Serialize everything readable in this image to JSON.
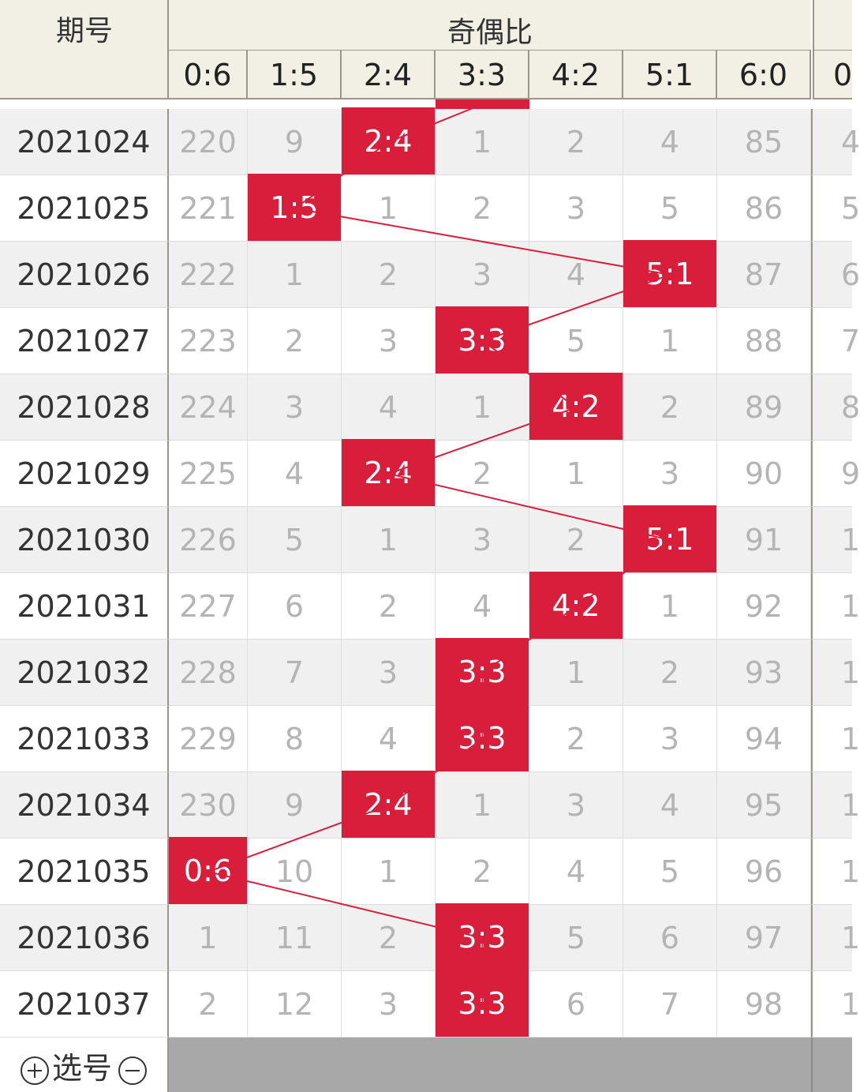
{
  "header": {
    "period_label": "期号",
    "group_label": "奇偶比",
    "columns": [
      "0:6",
      "1:5",
      "2:4",
      "3:3",
      "4:2",
      "5:1",
      "6:0"
    ],
    "next_col_partial": "0"
  },
  "rows": [
    {
      "period": "2021024",
      "values": [
        "220",
        "9",
        "2:4",
        "1",
        "2",
        "4",
        "85"
      ],
      "hit": 2,
      "next": "4"
    },
    {
      "period": "2021025",
      "values": [
        "221",
        "1:5",
        "1",
        "2",
        "3",
        "5",
        "86"
      ],
      "hit": 1,
      "next": "5"
    },
    {
      "period": "2021026",
      "values": [
        "222",
        "1",
        "2",
        "3",
        "4",
        "5:1",
        "87"
      ],
      "hit": 5,
      "next": "6"
    },
    {
      "period": "2021027",
      "values": [
        "223",
        "2",
        "3",
        "3:3",
        "5",
        "1",
        "88"
      ],
      "hit": 3,
      "next": "7"
    },
    {
      "period": "2021028",
      "values": [
        "224",
        "3",
        "4",
        "1",
        "4:2",
        "2",
        "89"
      ],
      "hit": 4,
      "next": "8"
    },
    {
      "period": "2021029",
      "values": [
        "225",
        "4",
        "2:4",
        "2",
        "1",
        "3",
        "90"
      ],
      "hit": 2,
      "next": "9"
    },
    {
      "period": "2021030",
      "values": [
        "226",
        "5",
        "1",
        "3",
        "2",
        "5:1",
        "91"
      ],
      "hit": 5,
      "next": "1"
    },
    {
      "period": "2021031",
      "values": [
        "227",
        "6",
        "2",
        "4",
        "4:2",
        "1",
        "92"
      ],
      "hit": 4,
      "next": "1"
    },
    {
      "period": "2021032",
      "values": [
        "228",
        "7",
        "3",
        "3:3",
        "1",
        "2",
        "93"
      ],
      "hit": 3,
      "next": "1"
    },
    {
      "period": "2021033",
      "values": [
        "229",
        "8",
        "4",
        "3:3",
        "2",
        "3",
        "94"
      ],
      "hit": 3,
      "next": "1"
    },
    {
      "period": "2021034",
      "values": [
        "230",
        "9",
        "2:4",
        "1",
        "3",
        "4",
        "95"
      ],
      "hit": 2,
      "next": "1"
    },
    {
      "period": "2021035",
      "values": [
        "0:6",
        "10",
        "1",
        "2",
        "4",
        "5",
        "96"
      ],
      "hit": 0,
      "next": "1"
    },
    {
      "period": "2021036",
      "values": [
        "1",
        "11",
        "2",
        "3:3",
        "5",
        "6",
        "97"
      ],
      "hit": 3,
      "next": "1"
    },
    {
      "period": "2021037",
      "values": [
        "2",
        "12",
        "3",
        "3:3",
        "6",
        "7",
        "98"
      ],
      "hit": 3,
      "next": "1"
    }
  ],
  "footer": {
    "select_label": "选号",
    "plus_icon": "plus-circle-icon",
    "minus_icon": "minus-circle-icon"
  },
  "colors": {
    "hit": "#d81e3a",
    "header_bg": "#f2f0e4",
    "row_alt": "#f0f0f0",
    "muted_text": "#b4b4b4",
    "footer_bar": "#a8a8a8"
  }
}
